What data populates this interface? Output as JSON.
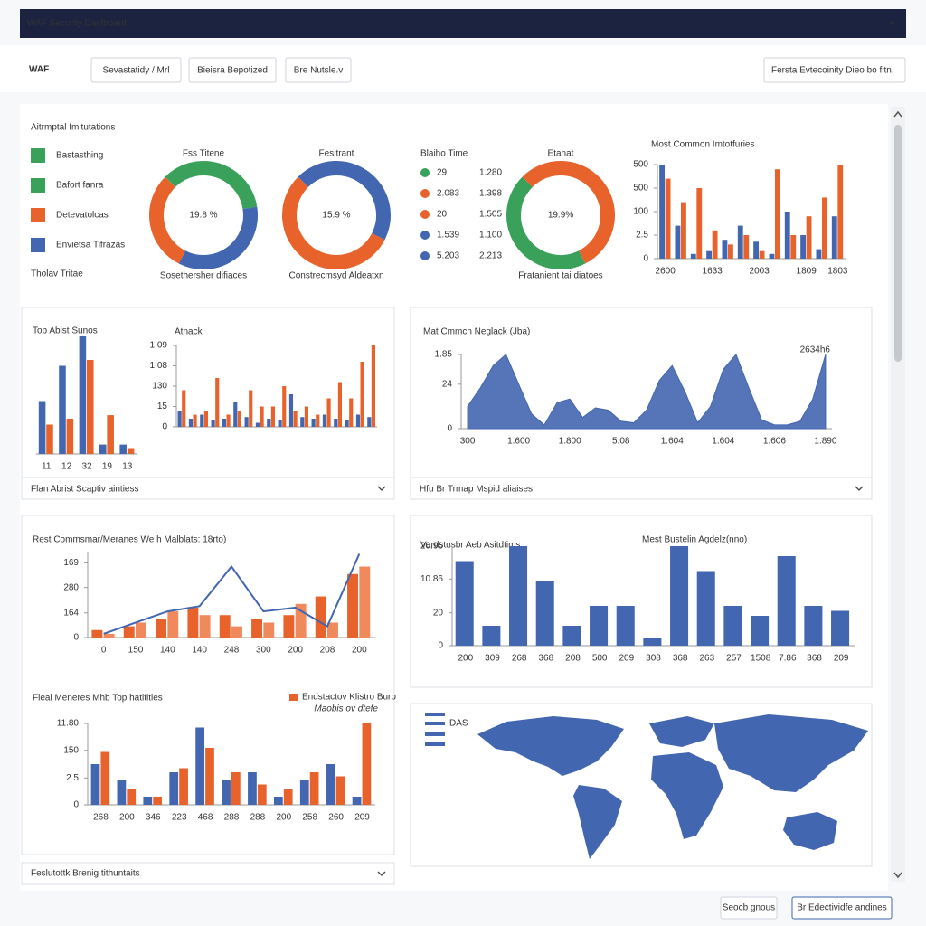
{
  "window": {
    "title": "WAF Security Dasfboard",
    "close": "×"
  },
  "toolbar": {
    "logo": "WAF",
    "buttons": [
      "Sevastatidy / Mrl",
      "Bieisra Bepotized",
      "Bre Nutsle.v"
    ],
    "dropdown": "Fersta Evtecoinity Dieo bo fitn."
  },
  "legend_panel": {
    "title": "Aitrmptal Imitutations",
    "items": [
      {
        "label": "Bastasthing",
        "color": "#3aa15a"
      },
      {
        "label": "Bafort fanra",
        "color": "#3aa15a"
      },
      {
        "label": "Detevatolcas",
        "color": "#e8622c"
      },
      {
        "label": "Envietsa Tifrazas",
        "color": "#4266b0"
      }
    ],
    "footer": "Tholav Tritae"
  },
  "time_table": {
    "title": "Blaiho Time",
    "rows": [
      {
        "color": "#3aa15a",
        "cells": [
          "29",
          "1.280"
        ]
      },
      {
        "color": "#e8622c",
        "cells": [
          "2.083",
          "1.398"
        ]
      },
      {
        "color": "#e8622c",
        "cells": [
          "20",
          "1.505"
        ]
      },
      {
        "color": "#4266b0",
        "cells": [
          "1.539",
          "1.100"
        ]
      },
      {
        "color": "#4266b0",
        "cells": [
          "5.203",
          "2.213"
        ]
      }
    ]
  },
  "panel_footers": [
    "Flan Abrist Scaptiv aintiess",
    "Hfu Br Trmap Mspid aliaises",
    "Feslutottk Brenig tithuntaits"
  ],
  "map_panel": {
    "legend": "DAS",
    "color": "#4266b0"
  },
  "footer_buttons": [
    "Seocb gnous",
    "Br Edectividfe andines"
  ],
  "chart_data": [
    {
      "type": "pie",
      "title": "Fss Titene",
      "center_label": "19.8 %",
      "caption": "Sosethersher difiaces",
      "values": [
        35,
        35,
        30
      ],
      "colors": [
        "#3aa15a",
        "#4266b0",
        "#e8622c"
      ]
    },
    {
      "type": "pie",
      "title": "Fesitrant",
      "center_label": "15.9 %",
      "caption": "Constrecmsyd Aldeatxn",
      "values": [
        45,
        55
      ],
      "colors": [
        "#4266b0",
        "#e8622c"
      ]
    },
    {
      "type": "pie",
      "title": "Etanat",
      "center_label": "19.9%",
      "caption": "Fratanient tai diatoes",
      "values": [
        55,
        45
      ],
      "colors": [
        "#e8622c",
        "#3aa15a"
      ]
    },
    {
      "type": "bar",
      "title": "Most Common Imtotfuries",
      "categories": [
        "2600",
        null,
        null,
        "1633",
        null,
        null,
        "2003",
        null,
        null,
        "1809",
        null,
        "1803"
      ],
      "series": [
        {
          "color": "#4266b0",
          "values": [
            100,
            35,
            5,
            8,
            20,
            35,
            18,
            5,
            50,
            25,
            10,
            45
          ]
        },
        {
          "color": "#e8622c",
          "values": [
            85,
            60,
            75,
            30,
            15,
            25,
            8,
            95,
            25,
            45,
            65,
            100
          ]
        }
      ],
      "ylim": [
        0,
        100
      ],
      "yticks": [
        0,
        {
          "value": 25,
          "label": "2.5"
        },
        {
          "value": 50,
          "label": "100"
        },
        {
          "value": 75,
          "label": "500"
        },
        {
          "value": 100,
          "label": "500"
        }
      ]
    },
    {
      "type": "bar",
      "title": "Top Abist Sunos",
      "categories": [
        "11",
        "12",
        "32",
        "19",
        "13"
      ],
      "series": [
        {
          "color": "#4266b0",
          "values": [
            45,
            75,
            100,
            8,
            8
          ]
        },
        {
          "color": "#e8622c",
          "values": [
            25,
            30,
            80,
            33,
            5
          ]
        }
      ],
      "ylim": [
        0,
        100
      ]
    },
    {
      "type": "bar",
      "title": "Atnack",
      "categories": [
        null,
        null,
        null,
        null,
        null,
        null,
        null,
        null,
        null,
        null,
        null,
        null,
        null,
        null,
        null,
        null,
        null,
        null
      ],
      "series": [
        {
          "color": "#4266b0",
          "values": [
            20,
            10,
            15,
            8,
            10,
            30,
            12,
            5,
            10,
            8,
            40,
            12,
            10,
            15,
            10,
            8,
            15,
            12
          ]
        },
        {
          "color": "#e8622c",
          "values": [
            45,
            15,
            20,
            60,
            15,
            20,
            45,
            25,
            25,
            50,
            20,
            25,
            15,
            35,
            55,
            35,
            80,
            100
          ]
        }
      ],
      "ylim": [
        0,
        100
      ],
      "yticks": [
        0,
        {
          "value": 25,
          "label": "15"
        },
        {
          "value": 50,
          "label": "130"
        },
        {
          "value": 75,
          "label": "1.08"
        },
        {
          "value": 100,
          "label": "1.09"
        }
      ]
    },
    {
      "type": "area",
      "title": "Mat Cmmcn Neglack (Jba)",
      "annotation": "2634h6",
      "color": "#4266b0",
      "categories": [
        "300",
        null,
        null,
        null,
        "1.600",
        null,
        null,
        null,
        "1.800",
        null,
        null,
        null,
        "5.08",
        null,
        null,
        null,
        "1.604",
        null,
        null,
        null,
        "1.604",
        null,
        null,
        null,
        "1.606",
        null,
        null,
        null,
        "1.890"
      ],
      "values": [
        30,
        55,
        85,
        100,
        60,
        20,
        5,
        35,
        40,
        15,
        28,
        25,
        10,
        8,
        25,
        65,
        85,
        50,
        8,
        30,
        80,
        100,
        55,
        12,
        5,
        5,
        10,
        40,
        100
      ],
      "ylim": [
        0,
        100
      ],
      "yticks": [
        0,
        {
          "value": 60,
          "label": "24"
        },
        {
          "value": 100,
          "label": "1.85"
        }
      ]
    },
    {
      "type": "combo",
      "title": "Rest Commsmar/Meranes We h Malblats: 18rto)",
      "categories": [
        "0",
        "150",
        "140",
        "140",
        "248",
        "300",
        "200",
        "208",
        "200"
      ],
      "series": [
        {
          "color": "#e8622c",
          "values": [
            10,
            15,
            25,
            40,
            30,
            25,
            30,
            55,
            85
          ]
        },
        {
          "color": "#f08a5d",
          "values": [
            5,
            20,
            35,
            30,
            15,
            20,
            45,
            20,
            95
          ]
        }
      ],
      "line": {
        "color": "#4266b0",
        "values": [
          5,
          20,
          35,
          42,
          95,
          35,
          40,
          15,
          112
        ]
      },
      "ylim": [
        0,
        115
      ],
      "yticks": [
        0,
        {
          "value": 33,
          "label": "164"
        },
        {
          "value": 67,
          "label": "280"
        },
        {
          "value": 100,
          "label": "169"
        }
      ]
    },
    {
      "type": "bar",
      "title": "Fleal Meneres Mhb Top hatitities",
      "legend_note": "Maobis ov dtefe",
      "categories": [
        "268",
        "200",
        "346",
        "223",
        "468",
        "288",
        "288",
        "200",
        "258",
        "260",
        "209"
      ],
      "series": [
        {
          "color": "#4266b0",
          "values": [
            50,
            30,
            10,
            40,
            95,
            30,
            40,
            10,
            30,
            50,
            10
          ]
        },
        {
          "name": "Endstactov Klistro Burb",
          "color": "#e8622c",
          "values": [
            65,
            20,
            10,
            45,
            70,
            40,
            25,
            20,
            40,
            35,
            100
          ]
        }
      ],
      "ylim": [
        0,
        100
      ],
      "yticks": [
        0,
        {
          "value": 33,
          "label": "2.5"
        },
        {
          "value": 67,
          "label": "150"
        },
        {
          "value": 100,
          "label": "11.80"
        }
      ]
    },
    {
      "type": "bar",
      "title": "Vardstusbr Aeb Asitdtims",
      "subtitle": "Mest Bustelin Agdelz(nno)",
      "categories": [
        "200",
        "309",
        "268",
        "368",
        "208",
        "500",
        "209",
        "308",
        "368",
        "263",
        "257",
        "1508",
        "7.86",
        "368",
        "209"
      ],
      "series": [
        {
          "color": "#4266b0",
          "values": [
            85,
            20,
            100,
            65,
            20,
            40,
            40,
            8,
            100,
            75,
            40,
            30,
            90,
            40,
            35
          ]
        }
      ],
      "ylim": [
        0,
        100
      ],
      "yticks": [
        0,
        {
          "value": 33,
          "label": "20"
        },
        {
          "value": 67,
          "label": "10.86"
        },
        {
          "value": 100,
          "label": "20.96"
        }
      ]
    }
  ]
}
